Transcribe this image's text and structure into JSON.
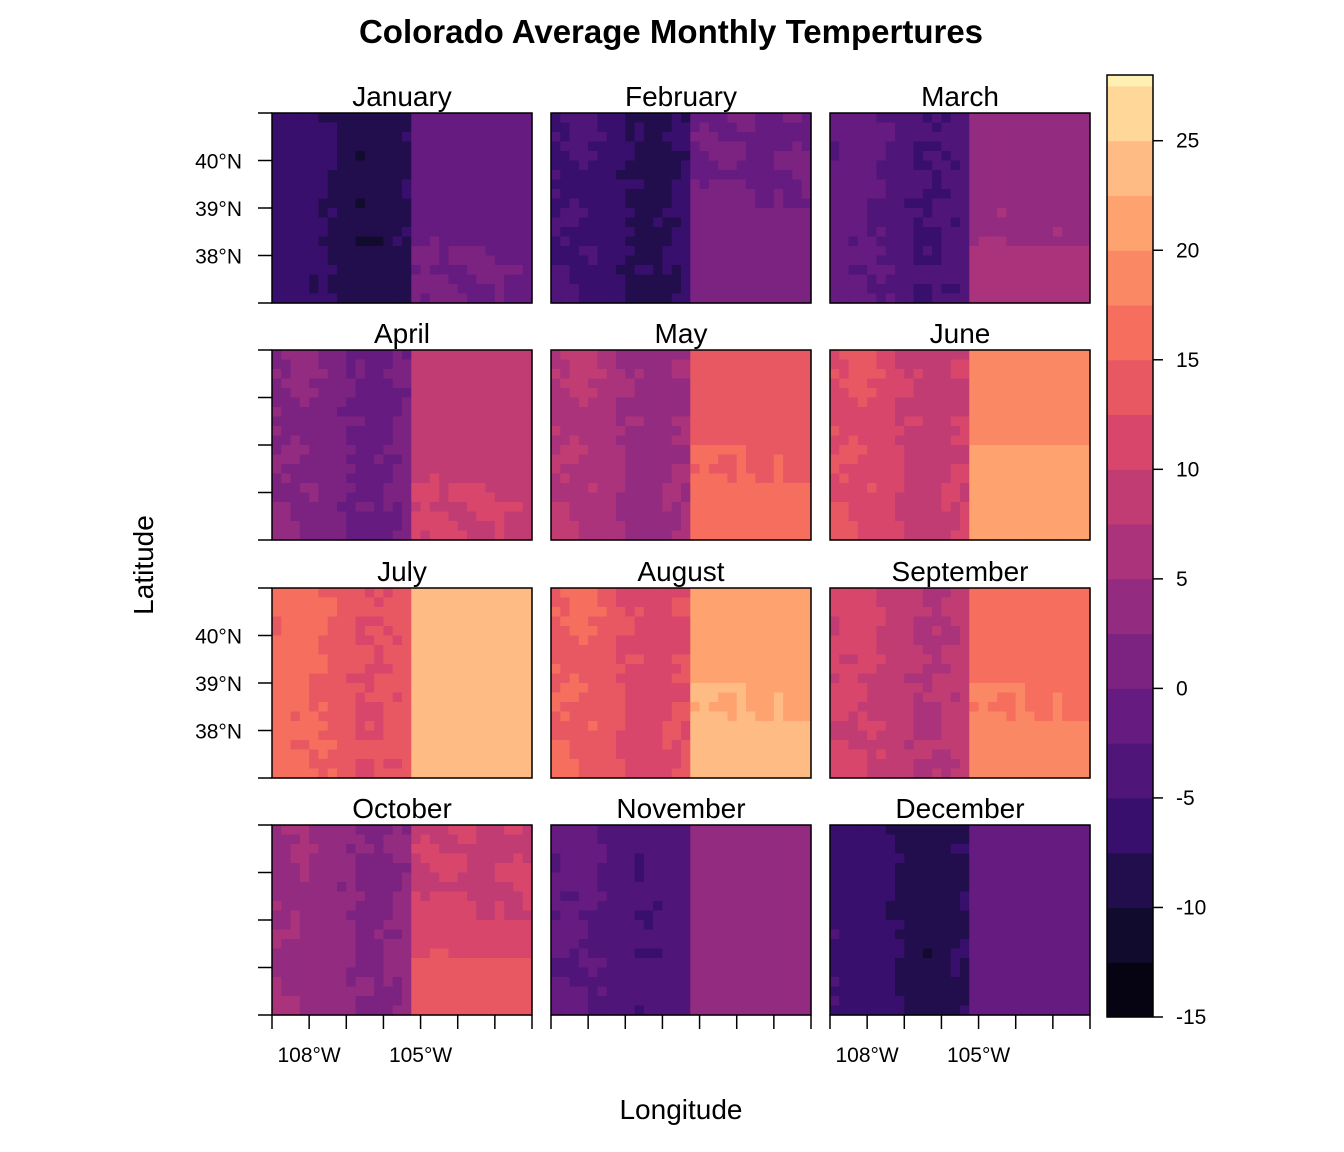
{
  "chart_data": {
    "type": "heatmap",
    "title": "Colorado Average Monthly Tempertures",
    "xlabel": "Longitude",
    "ylabel": "Latitude",
    "layout": {
      "rows": 4,
      "cols": 3
    },
    "x_range": [
      -109.05,
      -102.05
    ],
    "y_range": [
      37.0,
      41.0
    ],
    "x_tick_labels": [
      "108°W",
      "105°W"
    ],
    "y_tick_labels": [
      "40°N",
      "39°N",
      "38°N"
    ],
    "colorbar": {
      "range": [
        -15,
        28
      ],
      "step": 2.5,
      "tick_labels": [
        "25",
        "20",
        "15",
        "10",
        "5",
        "0",
        "-5",
        "-10",
        "-15"
      ],
      "palette": [
        "#000004",
        "#140E36",
        "#3B0F70",
        "#641A80",
        "#8C2981",
        "#B73779",
        "#DE4968",
        "#F7705C",
        "#FE9F6D",
        "#FECF92",
        "#FCFDBF"
      ]
    },
    "panels": [
      {
        "month": "January",
        "plains_north": -2.0,
        "plains_south": 0.0,
        "mountain_low": -5.0,
        "mountain_high": -11.0
      },
      {
        "month": "February",
        "plains_north": 0.0,
        "plains_south": 1.5,
        "mountain_low": -3.5,
        "mountain_high": -10.0
      },
      {
        "month": "March",
        "plains_north": 4.0,
        "plains_south": 5.5,
        "mountain_low": 0.0,
        "mountain_high": -7.0
      },
      {
        "month": "April",
        "plains_north": 8.5,
        "plains_south": 10.0,
        "mountain_low": 4.0,
        "mountain_high": -2.5
      },
      {
        "month": "May",
        "plains_north": 14.0,
        "plains_south": 16.0,
        "mountain_low": 9.0,
        "mountain_high": 2.0
      },
      {
        "month": "June",
        "plains_north": 19.5,
        "plains_south": 21.5,
        "mountain_low": 14.0,
        "mountain_high": 7.0
      },
      {
        "month": "July",
        "plains_north": 23.0,
        "plains_south": 24.5,
        "mountain_low": 17.5,
        "mountain_high": 10.5
      },
      {
        "month": "August",
        "plains_north": 21.5,
        "plains_south": 23.5,
        "mountain_low": 16.5,
        "mountain_high": 9.5
      },
      {
        "month": "September",
        "plains_north": 16.5,
        "plains_south": 18.5,
        "mountain_low": 12.0,
        "mountain_high": 5.5
      },
      {
        "month": "October",
        "plains_north": 10.0,
        "plains_south": 13.0,
        "mountain_low": 6.0,
        "mountain_high": 0.5
      },
      {
        "month": "November",
        "plains_north": 3.0,
        "plains_south": 4.5,
        "mountain_low": -1.0,
        "mountain_high": -6.0
      },
      {
        "month": "December",
        "plains_north": -2.0,
        "plains_south": -1.5,
        "mountain_low": -4.5,
        "mountain_high": -10.5
      }
    ]
  }
}
